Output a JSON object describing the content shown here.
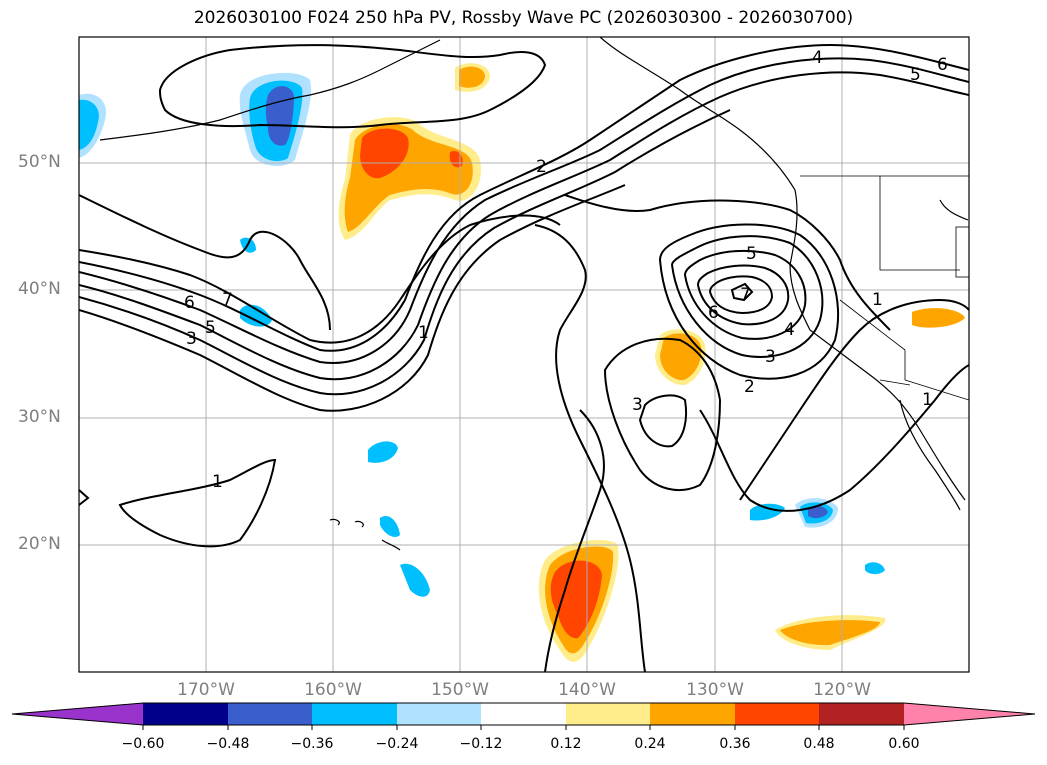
{
  "title": "2026030100 F024 250 hPa PV, Rossby Wave PC (2026030300 - 2026030700)",
  "map": {
    "lat_labels": [
      "50°N",
      "40°N",
      "30°N",
      "20°N"
    ],
    "lon_labels": [
      "170°W",
      "160°W",
      "150°W",
      "140°W",
      "130°W",
      "120°W"
    ],
    "contour_labels": [
      {
        "text": "4"
      },
      {
        "text": "5"
      },
      {
        "text": "6"
      },
      {
        "text": "2"
      },
      {
        "text": "6"
      },
      {
        "text": "7"
      },
      {
        "text": "5"
      },
      {
        "text": "3"
      },
      {
        "text": "1"
      },
      {
        "text": "5"
      },
      {
        "text": "7"
      },
      {
        "text": "6"
      },
      {
        "text": "4"
      },
      {
        "text": "3"
      },
      {
        "text": "2"
      },
      {
        "text": "1"
      },
      {
        "text": "3"
      },
      {
        "text": "1"
      },
      {
        "text": "1"
      }
    ]
  },
  "colorbar": {
    "ticks": [
      "−0.60",
      "−0.48",
      "−0.36",
      "−0.24",
      "−0.12",
      "0.12",
      "0.24",
      "0.36",
      "0.48",
      "0.60"
    ],
    "colors": [
      "#9933cc",
      "#00008b",
      "#3a5fcd",
      "#00bfff",
      "#b0e2ff",
      "#ffffff",
      "#ffec8b",
      "#ffa500",
      "#ff4500",
      "#b22222",
      "#ff82ab"
    ]
  }
}
